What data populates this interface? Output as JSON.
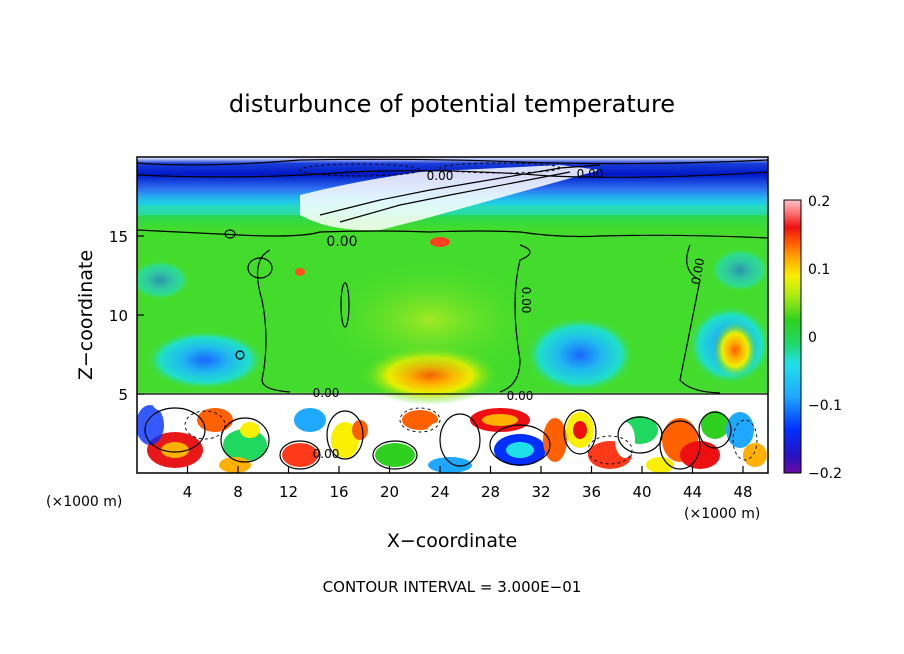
{
  "chart_data": {
    "type": "heatmap",
    "title": "disturbunce of potential temperature",
    "xlabel": "X−coordinate",
    "ylabel": "Z−coordinate",
    "x_unit": "(×1000 m)",
    "x_unit_right": "(×1000 m)",
    "x_range": [
      0,
      50
    ],
    "z_range": [
      0,
      20
    ],
    "x_ticks": [
      "4",
      "8",
      "12",
      "16",
      "20",
      "24",
      "28",
      "32",
      "36",
      "40",
      "44",
      "48"
    ],
    "z_ticks": [
      "5",
      "10",
      "15"
    ],
    "colorbar": {
      "range": [
        -0.2,
        0.2
      ],
      "labels": [
        "0.2",
        "0.1",
        "0",
        "−0.1",
        "−0.2"
      ]
    },
    "contour_labels": [
      "0.00",
      "0.00",
      "0.00",
      "0.00",
      "0.00",
      "0.00",
      "0.00",
      "0.00"
    ],
    "footer": "CONTOUR INTERVAL = 3.000E−01"
  }
}
